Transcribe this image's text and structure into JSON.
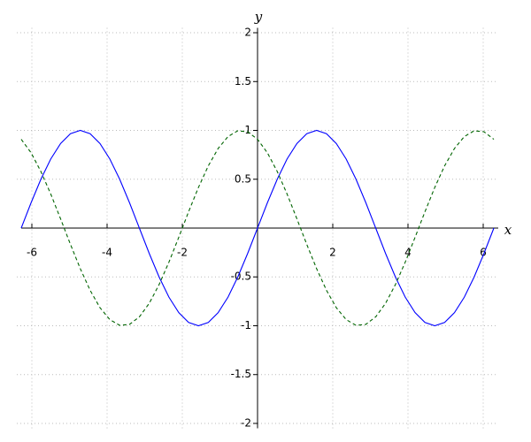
{
  "chart_data": {
    "type": "line",
    "x_label": "x",
    "y_label": "y",
    "x": [
      -6.283,
      -6.021,
      -5.76,
      -5.498,
      -5.236,
      -4.974,
      -4.712,
      -4.451,
      -4.189,
      -3.927,
      -3.665,
      -3.403,
      -3.142,
      -2.88,
      -2.618,
      -2.356,
      -2.094,
      -1.833,
      -1.571,
      -1.309,
      -1.047,
      -0.785,
      -0.524,
      -0.262,
      0,
      0.262,
      0.524,
      0.785,
      1.047,
      1.309,
      1.571,
      1.833,
      2.094,
      2.356,
      2.618,
      2.88,
      3.142,
      3.403,
      3.665,
      3.927,
      4.189,
      4.451,
      4.712,
      4.974,
      5.236,
      5.498,
      5.76,
      6.021,
      6.283
    ],
    "series": [
      {
        "color": "#0000ff",
        "style": "solid",
        "values": [
          0,
          0.259,
          0.5,
          0.707,
          0.866,
          0.966,
          1,
          0.966,
          0.866,
          0.707,
          0.5,
          0.259,
          0,
          -0.259,
          -0.5,
          -0.707,
          -0.866,
          -0.966,
          -1,
          -0.966,
          -0.866,
          -0.707,
          -0.5,
          -0.259,
          0,
          0.259,
          0.5,
          0.707,
          0.866,
          0.966,
          1,
          0.966,
          0.866,
          0.707,
          0.5,
          0.259,
          0,
          -0.259,
          -0.5,
          -0.707,
          -0.866,
          -0.966,
          -1,
          -0.966,
          -0.866,
          -0.707,
          -0.5,
          -0.259,
          0
        ]
      },
      {
        "color": "#006400",
        "style": "dashed",
        "values": [
          0.909,
          0.771,
          0.579,
          0.349,
          0.094,
          -0.167,
          -0.416,
          -0.637,
          -0.815,
          -0.937,
          -0.996,
          -0.986,
          -0.909,
          -0.771,
          -0.579,
          -0.349,
          -0.094,
          0.167,
          0.416,
          0.637,
          0.815,
          0.937,
          0.996,
          0.986,
          0.909,
          0.771,
          0.579,
          0.349,
          0.094,
          -0.167,
          -0.416,
          -0.637,
          -0.815,
          -0.937,
          -0.996,
          -0.986,
          -0.909,
          -0.771,
          -0.579,
          -0.349,
          -0.094,
          0.167,
          0.416,
          0.637,
          0.815,
          0.937,
          0.996,
          0.986,
          0.909
        ]
      }
    ],
    "xlim": [
      -6.4,
      6.4
    ],
    "ylim": [
      -2.05,
      2.05
    ],
    "xticks": [
      -6,
      -4,
      -2,
      2,
      4,
      6
    ],
    "yticks": [
      -2,
      -1.5,
      -1,
      -0.5,
      0.5,
      1,
      1.5,
      2
    ],
    "grid": true
  }
}
